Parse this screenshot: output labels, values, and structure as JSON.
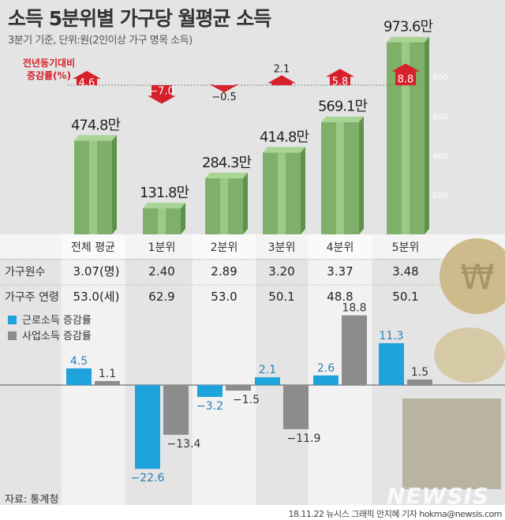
{
  "title": "소득 5분위별 가구당 월평균 소득",
  "subtitle": "3분기 기준, 단위:원(2인이상 가구 명목 소득)",
  "source": "자료: 통계청",
  "credit": "18.11.22 뉴시스 그래픽 안지혜 기자 hokma@newsis.com",
  "logo": "NEWSIS",
  "colors": {
    "bar_green": "#7fb06a",
    "yoy_red": "#d6202a",
    "labor": "#1ea3dc",
    "business": "#8c8c8c"
  },
  "chart_data": [
    {
      "type": "bar",
      "title": "소득 5분위별 가구당 월평균 소득",
      "categories": [
        "전체 평균",
        "1분위",
        "2분위",
        "3분위",
        "4분위",
        "5분위"
      ],
      "values": [
        474.8,
        131.8,
        284.3,
        414.8,
        569.1,
        973.6
      ],
      "value_labels": [
        "474.8만",
        "131.8만",
        "284.3만",
        "414.8만",
        "569.1만",
        "973.6만"
      ],
      "yticks": [
        200,
        400,
        600,
        800
      ],
      "ylim": [
        0,
        1000
      ],
      "yoy_label": [
        "전년동기대비",
        "증감률(%)"
      ],
      "yoy": [
        4.6,
        -7.0,
        -0.5,
        2.1,
        5.8,
        8.8
      ],
      "yoy_labels": [
        "4.6",
        "−7.0",
        "−0.5",
        "2.1",
        "5.8",
        "8.8"
      ]
    },
    {
      "type": "table",
      "rows": [
        {
          "label": "가구원수",
          "values": [
            "3.07(명)",
            "2.40",
            "2.89",
            "3.20",
            "3.37",
            "3.48"
          ]
        },
        {
          "label": "가구주 연령",
          "values": [
            "53.0(세)",
            "62.9",
            "53.0",
            "50.1",
            "48.8",
            "50.1"
          ]
        }
      ]
    },
    {
      "type": "bar",
      "categories": [
        "전체 평균",
        "1분위",
        "2분위",
        "3분위",
        "4분위",
        "5분위"
      ],
      "series": [
        {
          "name": "근로소득 증감률",
          "values": [
            4.5,
            -22.6,
            -3.2,
            2.1,
            2.6,
            11.3
          ],
          "labels": [
            "4.5",
            "−22.6",
            "−3.2",
            "2.1",
            "2.6",
            "11.3"
          ]
        },
        {
          "name": "사업소득 증감률",
          "values": [
            1.1,
            -13.4,
            -1.5,
            -11.9,
            18.8,
            1.5
          ],
          "labels": [
            "1.1",
            "−13.4",
            "−1.5",
            "−11.9",
            "18.8",
            "1.5"
          ]
        }
      ]
    }
  ]
}
